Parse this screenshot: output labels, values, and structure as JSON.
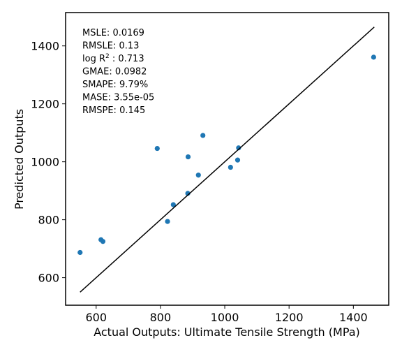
{
  "chart_data": {
    "type": "scatter",
    "xlabel": "Actual Outputs: Ultimate Tensile Strength (MPa)",
    "ylabel": "Predicted Outputs",
    "xlim": [
      505,
      1510
    ],
    "ylim": [
      505,
      1515
    ],
    "xticks": [
      600,
      800,
      1000,
      1200,
      1400
    ],
    "yticks": [
      600,
      800,
      1000,
      1200,
      1400
    ],
    "grid": false,
    "point_color": "#1f77b4",
    "line_color": "#000000",
    "identity_line": {
      "x": [
        550,
        1465
      ],
      "y": [
        550,
        1465
      ]
    },
    "points": [
      {
        "x": 550,
        "y": 687
      },
      {
        "x": 615,
        "y": 731
      },
      {
        "x": 621,
        "y": 725
      },
      {
        "x": 790,
        "y": 1046
      },
      {
        "x": 822,
        "y": 794
      },
      {
        "x": 840,
        "y": 852
      },
      {
        "x": 885,
        "y": 891
      },
      {
        "x": 886,
        "y": 1017
      },
      {
        "x": 918,
        "y": 954
      },
      {
        "x": 932,
        "y": 1091
      },
      {
        "x": 1018,
        "y": 981
      },
      {
        "x": 1040,
        "y": 1006
      },
      {
        "x": 1043,
        "y": 1048
      },
      {
        "x": 1463,
        "y": 1361
      }
    ],
    "metrics": [
      {
        "label": "MSLE: ",
        "value": "0.0169"
      },
      {
        "label": "RMSLE: ",
        "value": "0.13"
      },
      {
        "label": "log R",
        "sup": "2",
        "label_after": " : ",
        "value": "0.713"
      },
      {
        "label": "GMAE: ",
        "value": "0.0982"
      },
      {
        "label": "SMAPE: ",
        "value": "9.79%"
      },
      {
        "label": "MASE: ",
        "value": "3.55e-05"
      },
      {
        "label": "RMSPE: ",
        "value": "0.145"
      }
    ]
  }
}
